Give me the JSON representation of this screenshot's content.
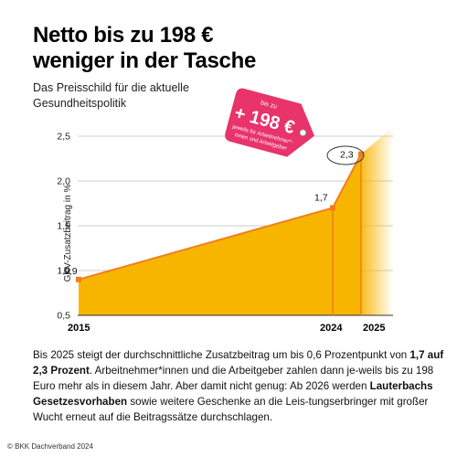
{
  "title_line1": "Netto bis zu 198 €",
  "title_line2": "weniger in der Tasche",
  "subtitle_line1": "Das Preisschild für die aktuelle",
  "subtitle_line2": "Gesundheitspolitik",
  "chart_data": {
    "type": "area",
    "ylabel": "GKV-Zusatzbeitrag in %",
    "ylim": [
      0.5,
      2.5
    ],
    "yticks": [
      "0,5",
      "1,0",
      "1,5",
      "2,0",
      "2,5"
    ],
    "x": [
      2015,
      2024,
      2025
    ],
    "xtick_labels": [
      "2015",
      "2024",
      "2025"
    ],
    "values": [
      0.9,
      1.7,
      2.3
    ],
    "data_labels": [
      "0,9",
      "1,7",
      "2,3"
    ],
    "area_color": "#f7b500",
    "line_color": "#f07d1e",
    "tag": {
      "top_text": "bis zu",
      "amount": "+ 198 €",
      "line1": "jeweils für Arbeitnehmer*-",
      "line2": "innen und Arbeitgeber",
      "color": "#e8336b"
    }
  },
  "body": {
    "p1": "Bis 2025 steigt der durchschnittliche Zusatzbeitrag um bis 0,6 Prozentpunkt von ",
    "b1": "1,7 auf 2,3 Prozent",
    "p2": ". Arbeitnehmer*innen und die Arbeitgeber zahlen dann je-weils bis zu 198 Euro mehr als in diesem Jahr. Aber damit nicht genug: Ab 2026 werden ",
    "b2": "Lauterbachs Gesetzesvorhaben",
    "p3": " sowie weitere Geschenke an die Leis-tungserbringer mit großer Wucht erneut auf die Beitragssätze durchschlagen."
  },
  "footer": "© BKK Dachverband 2024"
}
